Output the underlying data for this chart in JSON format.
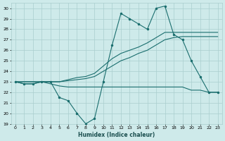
{
  "xlabel": "Humidex (Indice chaleur)",
  "background_color": "#ceeaea",
  "grid_color": "#aacece",
  "line_color": "#1a6e6e",
  "xlim": [
    -0.5,
    23.5
  ],
  "ylim": [
    19,
    30.5
  ],
  "yticks": [
    19,
    20,
    21,
    22,
    23,
    24,
    25,
    26,
    27,
    28,
    29,
    30
  ],
  "xticks": [
    0,
    1,
    2,
    3,
    4,
    5,
    6,
    7,
    8,
    9,
    10,
    11,
    12,
    13,
    14,
    15,
    16,
    17,
    18,
    19,
    20,
    21,
    22,
    23
  ],
  "series": [
    [
      23,
      22.8,
      22.8,
      23,
      23,
      21.5,
      21.2,
      20,
      19,
      19.5,
      23,
      26.5,
      29.5,
      29,
      28.5,
      28,
      30,
      30.2,
      27.5,
      27,
      25,
      23.5,
      22,
      22
    ],
    [
      23,
      22.8,
      22.8,
      23,
      22.8,
      22.6,
      22.5,
      22.5,
      22.5,
      22.5,
      22.5,
      22.5,
      22.5,
      22.5,
      22.5,
      22.5,
      22.5,
      22.5,
      22.5,
      22.5,
      22.2,
      22.2,
      22,
      22
    ],
    [
      23,
      23,
      23,
      23,
      23,
      23,
      23.1,
      23.2,
      23.3,
      23.5,
      24.0,
      24.5,
      25.0,
      25.3,
      25.7,
      26.0,
      26.5,
      27.0,
      27.2,
      27.3,
      27.3,
      27.3,
      27.3,
      27.3
    ],
    [
      23,
      23,
      23,
      23,
      23,
      23,
      23.2,
      23.4,
      23.5,
      23.8,
      24.5,
      25.2,
      25.7,
      26.0,
      26.3,
      26.7,
      27.2,
      27.7,
      27.7,
      27.7,
      27.7,
      27.7,
      27.7,
      27.7
    ]
  ],
  "markers": [
    true,
    false,
    false,
    false
  ]
}
